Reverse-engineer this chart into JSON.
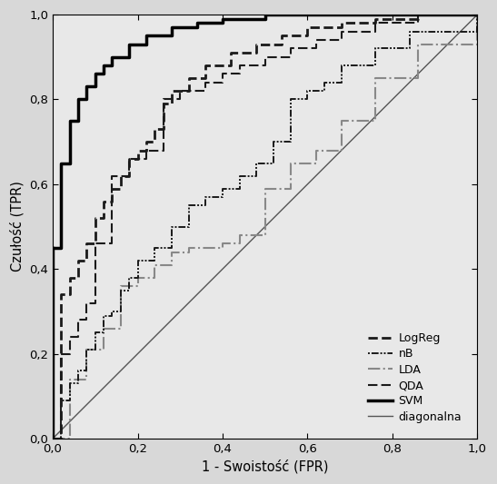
{
  "xlabel": "1 - Swoistość (FPR)",
  "ylabel": "Czułość (TPR)",
  "xlim": [
    0.0,
    1.0
  ],
  "ylim": [
    0.0,
    1.0
  ],
  "xticks": [
    0.0,
    0.2,
    0.4,
    0.6,
    0.8,
    1.0
  ],
  "yticks": [
    0.0,
    0.2,
    0.4,
    0.6,
    0.8,
    1.0
  ],
  "xtick_labels": [
    "0,0",
    "0,2",
    "0,4",
    "0,6",
    "0,8",
    "1,0"
  ],
  "ytick_labels": [
    "0,0",
    "0,2",
    "0,4",
    "0,6",
    "0,8",
    "1,0"
  ],
  "fig_background": "#d8d8d8",
  "plot_background": "#e8e8e8",
  "logreg_color": "#1a1a1a",
  "nb_color": "#1a1a1a",
  "lda_color": "#888888",
  "qda_color": "#1a1a1a",
  "svm_color": "#000000",
  "diag_color": "#555555",
  "logreg_x": [
    0.0,
    0.02,
    0.04,
    0.06,
    0.08,
    0.1,
    0.12,
    0.14,
    0.16,
    0.18,
    0.2,
    0.22,
    0.24,
    0.26,
    0.28,
    0.32,
    0.36,
    0.42,
    0.48,
    0.54,
    0.6,
    0.68,
    0.76,
    0.86,
    1.0
  ],
  "logreg_y": [
    0.0,
    0.34,
    0.38,
    0.42,
    0.46,
    0.52,
    0.56,
    0.59,
    0.62,
    0.66,
    0.68,
    0.7,
    0.73,
    0.79,
    0.82,
    0.85,
    0.88,
    0.91,
    0.93,
    0.95,
    0.97,
    0.98,
    0.99,
    1.0,
    1.0
  ],
  "nb_x": [
    0.0,
    0.02,
    0.04,
    0.06,
    0.08,
    0.1,
    0.12,
    0.14,
    0.16,
    0.18,
    0.2,
    0.24,
    0.28,
    0.32,
    0.36,
    0.4,
    0.44,
    0.48,
    0.52,
    0.56,
    0.6,
    0.64,
    0.68,
    0.76,
    0.84,
    1.0
  ],
  "nb_y": [
    0.0,
    0.09,
    0.13,
    0.16,
    0.21,
    0.25,
    0.29,
    0.3,
    0.35,
    0.38,
    0.42,
    0.45,
    0.5,
    0.55,
    0.57,
    0.59,
    0.62,
    0.65,
    0.7,
    0.8,
    0.82,
    0.84,
    0.88,
    0.92,
    0.96,
    1.0
  ],
  "lda_x": [
    0.0,
    0.04,
    0.08,
    0.12,
    0.16,
    0.2,
    0.24,
    0.28,
    0.32,
    0.36,
    0.4,
    0.44,
    0.5,
    0.56,
    0.62,
    0.68,
    0.76,
    0.86,
    1.0
  ],
  "lda_y": [
    0.0,
    0.14,
    0.21,
    0.26,
    0.36,
    0.38,
    0.41,
    0.44,
    0.45,
    0.45,
    0.46,
    0.48,
    0.59,
    0.65,
    0.68,
    0.75,
    0.85,
    0.93,
    1.0
  ],
  "qda_x": [
    0.0,
    0.02,
    0.04,
    0.06,
    0.08,
    0.1,
    0.14,
    0.18,
    0.22,
    0.26,
    0.3,
    0.36,
    0.4,
    0.44,
    0.5,
    0.56,
    0.62,
    0.68,
    0.76,
    0.86,
    1.0
  ],
  "qda_y": [
    0.0,
    0.2,
    0.24,
    0.28,
    0.32,
    0.46,
    0.62,
    0.66,
    0.68,
    0.8,
    0.82,
    0.84,
    0.86,
    0.88,
    0.9,
    0.92,
    0.94,
    0.96,
    0.98,
    1.0,
    1.0
  ],
  "svm_x": [
    0.0,
    0.02,
    0.04,
    0.06,
    0.08,
    0.1,
    0.12,
    0.14,
    0.18,
    0.22,
    0.28,
    0.34,
    0.4,
    0.5,
    0.6,
    0.8,
    1.0
  ],
  "svm_y": [
    0.45,
    0.65,
    0.75,
    0.8,
    0.83,
    0.86,
    0.88,
    0.9,
    0.93,
    0.95,
    0.97,
    0.98,
    0.99,
    1.0,
    1.0,
    1.0,
    1.0
  ]
}
